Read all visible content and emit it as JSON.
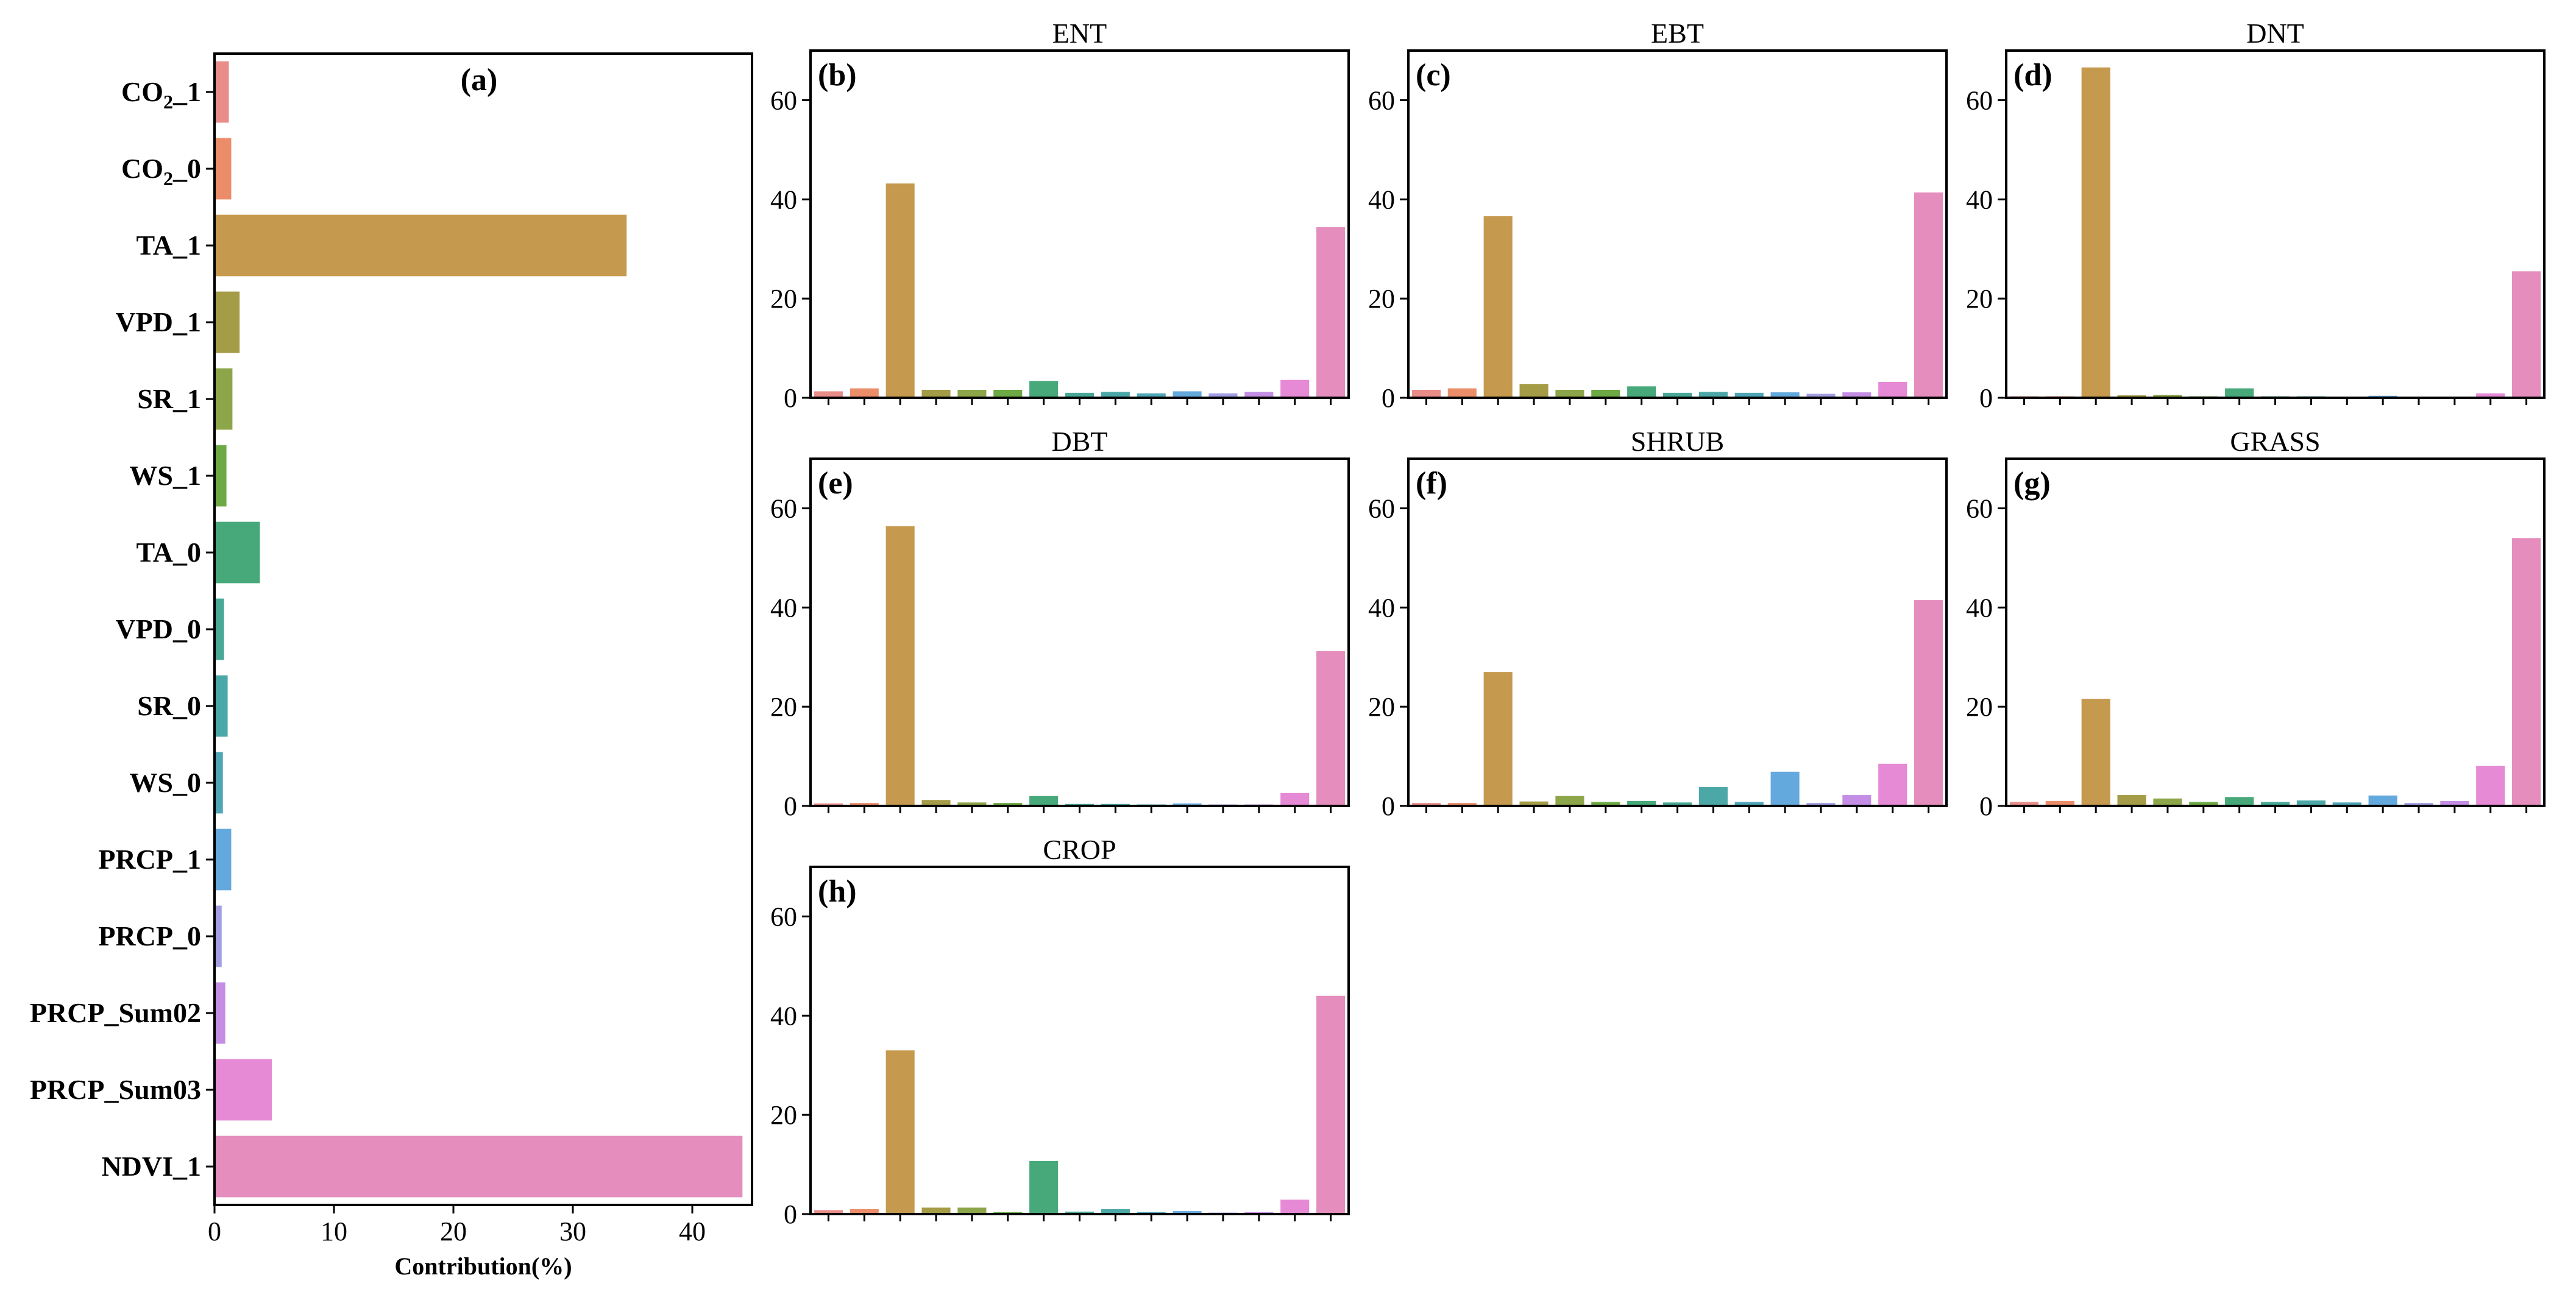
{
  "figure": {
    "palette": [
      "#e98d89",
      "#ec8d6a",
      "#c59a4e",
      "#a59c47",
      "#8da64a",
      "#6daa45",
      "#47a97a",
      "#49a996",
      "#4ba8a6",
      "#4ea6b6",
      "#64a9dd",
      "#a39fe2",
      "#c38ee3",
      "#e68ad6",
      "#e58ebd"
    ]
  },
  "chart_data": [
    {
      "type": "bar",
      "orientation": "horizontal",
      "panel_label": "(a)",
      "title": "",
      "categories": [
        "CO2_1",
        "CO2_0",
        "TA_1",
        "VPD_1",
        "SR_1",
        "WS_1",
        "TA_0",
        "VPD_0",
        "SR_0",
        "WS_0",
        "PRCP_1",
        "PRCP_0",
        "PRCP_Sum02",
        "PRCP_Sum03",
        "NDVI_1"
      ],
      "category_labels": [
        {
          "base": "CO",
          "sub": "2",
          "suffix": "_1"
        },
        {
          "base": "CO",
          "sub": "2",
          "suffix": "_0"
        },
        {
          "base": "TA_1",
          "sub": "",
          "suffix": ""
        },
        {
          "base": "VPD_1",
          "sub": "",
          "suffix": ""
        },
        {
          "base": "SR_1",
          "sub": "",
          "suffix": ""
        },
        {
          "base": "WS_1",
          "sub": "",
          "suffix": ""
        },
        {
          "base": "TA_0",
          "sub": "",
          "suffix": ""
        },
        {
          "base": "VPD_0",
          "sub": "",
          "suffix": ""
        },
        {
          "base": "SR_0",
          "sub": "",
          "suffix": ""
        },
        {
          "base": "WS_0",
          "sub": "",
          "suffix": ""
        },
        {
          "base": "PRCP_1",
          "sub": "",
          "suffix": ""
        },
        {
          "base": "PRCP_0",
          "sub": "",
          "suffix": ""
        },
        {
          "base": "PRCP_Sum02",
          "sub": "",
          "suffix": ""
        },
        {
          "base": "PRCP_Sum03",
          "sub": "",
          "suffix": ""
        },
        {
          "base": "NDVI_1",
          "sub": "",
          "suffix": ""
        }
      ],
      "values": [
        1.2,
        1.4,
        34.5,
        2.1,
        1.5,
        1.0,
        3.8,
        0.8,
        1.1,
        0.7,
        1.4,
        0.6,
        0.9,
        4.8,
        44.2
      ],
      "xlabel": "Contribution(%)",
      "xlim": [
        0,
        45
      ],
      "xticks": [
        0,
        10,
        20,
        30,
        40
      ]
    },
    {
      "type": "bar",
      "panel_label": "(b)",
      "title": "ENT",
      "values": [
        1.3,
        1.9,
        43.2,
        1.6,
        1.6,
        1.6,
        3.4,
        1.0,
        1.2,
        0.9,
        1.3,
        0.9,
        1.2,
        3.6,
        34.4
      ],
      "ylim": [
        0,
        70
      ],
      "yticks": [
        0,
        20,
        40,
        60
      ]
    },
    {
      "type": "bar",
      "panel_label": "(c)",
      "title": "EBT",
      "values": [
        1.6,
        1.9,
        36.6,
        2.8,
        1.6,
        1.6,
        2.3,
        1.0,
        1.2,
        1.0,
        1.1,
        0.8,
        1.1,
        3.2,
        41.4
      ],
      "ylim": [
        0,
        70
      ],
      "yticks": [
        0,
        20,
        40,
        60
      ]
    },
    {
      "type": "bar",
      "panel_label": "(d)",
      "title": "DNT",
      "values": [
        0.3,
        0.3,
        66.6,
        0.5,
        0.6,
        0.3,
        1.9,
        0.3,
        0.3,
        0.2,
        0.4,
        0.2,
        0.2,
        0.9,
        25.5
      ],
      "ylim": [
        0,
        70
      ],
      "yticks": [
        0,
        20,
        40,
        60
      ]
    },
    {
      "type": "bar",
      "panel_label": "(e)",
      "title": "DBT",
      "values": [
        0.5,
        0.6,
        56.4,
        1.2,
        0.7,
        0.6,
        2.0,
        0.4,
        0.4,
        0.3,
        0.5,
        0.3,
        0.3,
        2.6,
        31.2
      ],
      "ylim": [
        0,
        70
      ],
      "yticks": [
        0,
        20,
        40,
        60
      ]
    },
    {
      "type": "bar",
      "panel_label": "(f)",
      "title": "SHRUB",
      "values": [
        0.6,
        0.6,
        27.0,
        0.9,
        2.0,
        0.8,
        1.0,
        0.7,
        3.8,
        0.8,
        6.9,
        0.6,
        2.2,
        8.5,
        41.5
      ],
      "ylim": [
        0,
        70
      ],
      "yticks": [
        0,
        20,
        40,
        60
      ]
    },
    {
      "type": "bar",
      "panel_label": "(g)",
      "title": "GRASS",
      "values": [
        0.8,
        1.0,
        21.6,
        2.2,
        1.5,
        0.8,
        1.8,
        0.8,
        1.1,
        0.7,
        2.1,
        0.6,
        1.0,
        8.1,
        54.0
      ],
      "ylim": [
        0,
        70
      ],
      "yticks": [
        0,
        20,
        40,
        60
      ]
    },
    {
      "type": "bar",
      "panel_label": "(h)",
      "title": "CROP",
      "values": [
        0.8,
        1.0,
        33.0,
        1.3,
        1.3,
        0.4,
        10.7,
        0.5,
        1.0,
        0.4,
        0.6,
        0.3,
        0.4,
        2.9,
        44.0
      ],
      "ylim": [
        0,
        70
      ],
      "yticks": [
        0,
        20,
        40,
        60
      ]
    }
  ]
}
